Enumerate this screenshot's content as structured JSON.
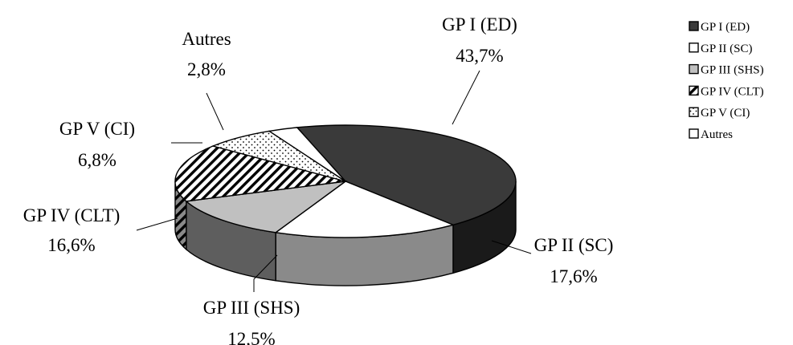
{
  "chart_data": {
    "type": "pie",
    "style": "3d-exploded-none",
    "legend_position": "right",
    "slices": [
      {
        "name": "GP I (ED)",
        "label": "GP I (ED)",
        "percent_text": "43,7%",
        "value": 43.7,
        "fill": "#3a3a3a",
        "pattern": "solid"
      },
      {
        "name": "GP II (SC)",
        "label": "GP II (SC)",
        "percent_text": "17,6%",
        "value": 17.6,
        "fill": "#ffffff",
        "pattern": "solid"
      },
      {
        "name": "GP III (SHS)",
        "label": "GP III (SHS)",
        "percent_text": "12,5%",
        "value": 12.5,
        "fill": "#c0c0c0",
        "pattern": "solid"
      },
      {
        "name": "GP IV (CLT)",
        "label": "GP IV (CLT)",
        "percent_text": "16,6%",
        "value": 16.6,
        "fill": "#ffffff",
        "pattern": "diagonal-hatch"
      },
      {
        "name": "GP V (CI)",
        "label": "GP V (CI)",
        "percent_text": "6,8%",
        "value": 6.8,
        "fill": "#ffffff",
        "pattern": "dots"
      },
      {
        "name": "Autres",
        "label": "Autres",
        "percent_text": "2,8%",
        "value": 2.8,
        "fill": "#ffffff",
        "pattern": "solid"
      }
    ]
  }
}
